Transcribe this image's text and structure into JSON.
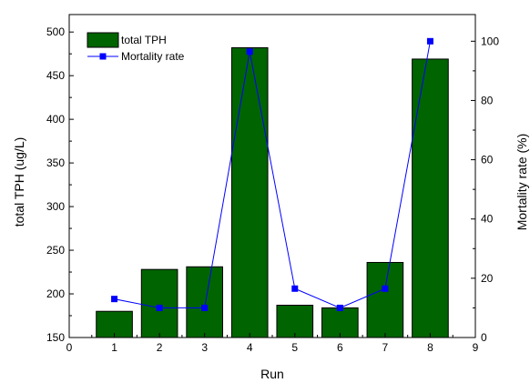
{
  "chart_data": {
    "type": "bar",
    "x": [
      1,
      2,
      3,
      4,
      5,
      6,
      7,
      8
    ],
    "series": [
      {
        "name": "total TPH",
        "type": "bar",
        "axis": "left",
        "color": "#006400",
        "values": [
          180,
          228,
          231,
          482,
          187,
          184,
          236,
          469
        ]
      },
      {
        "name": "Mortality rate",
        "type": "line",
        "axis": "right",
        "color": "#0000FF",
        "marker": "square",
        "values": [
          13,
          10,
          10,
          96.5,
          16.5,
          10,
          16.5,
          100
        ]
      }
    ],
    "xlabel": "Run",
    "ylabel": "total TPH (ug/L)",
    "y2label": "Mortality rate (%)",
    "xlim": [
      0,
      9
    ],
    "ylim": [
      150,
      520
    ],
    "y2lim": [
      0,
      109
    ],
    "xticks": [
      0,
      1,
      2,
      3,
      4,
      5,
      6,
      7,
      8,
      9
    ],
    "yticks": [
      150,
      200,
      250,
      300,
      350,
      400,
      450,
      500
    ],
    "y2ticks": [
      0,
      20,
      40,
      60,
      80,
      100
    ],
    "grid": false,
    "legend": "top-left"
  }
}
